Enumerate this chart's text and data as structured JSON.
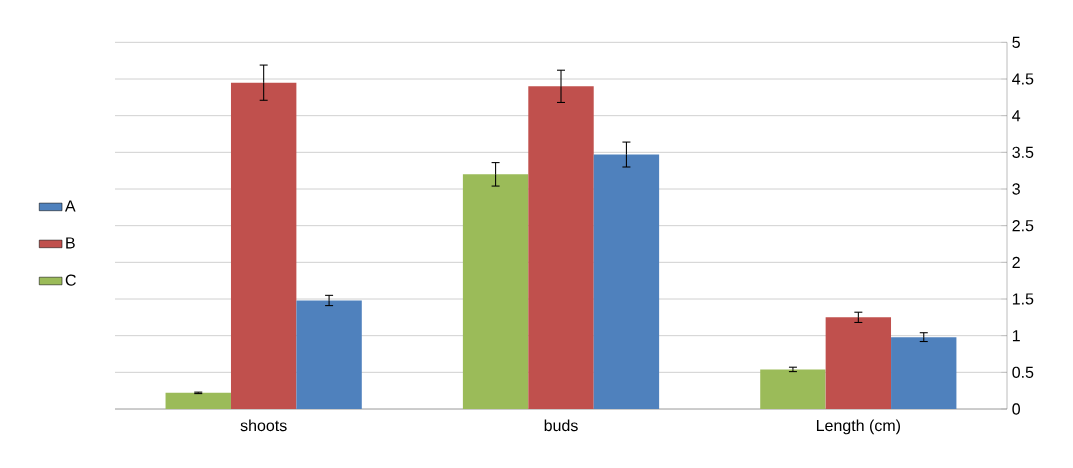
{
  "chart_data": {
    "type": "bar",
    "categories": [
      "shoots",
      "buds",
      "Length (cm)"
    ],
    "series": [
      {
        "name": "C",
        "color": "#9bbb59",
        "values": [
          0.22,
          3.2,
          0.54
        ],
        "errors": [
          0.01,
          0.16,
          0.03
        ]
      },
      {
        "name": "B",
        "color": "#c0504d",
        "values": [
          4.45,
          4.4,
          1.25
        ],
        "errors": [
          0.24,
          0.22,
          0.07
        ]
      },
      {
        "name": "A",
        "color": "#4f81bd",
        "values": [
          1.48,
          3.47,
          0.98
        ],
        "errors": [
          0.07,
          0.17,
          0.06
        ]
      }
    ],
    "ylim": [
      0,
      5
    ],
    "yticks": [
      0,
      0.5,
      1,
      1.5,
      2,
      2.5,
      3,
      3.5,
      4,
      4.5,
      5
    ],
    "grid": "y",
    "legend": "left"
  }
}
